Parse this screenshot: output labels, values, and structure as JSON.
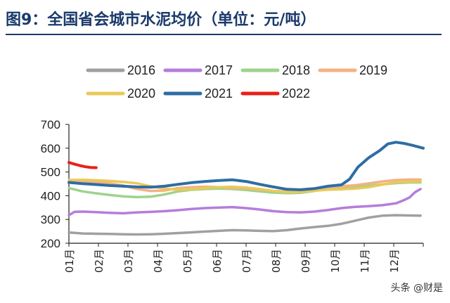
{
  "figure": {
    "title": "图9：全国省会城市水泥均价（单位：元/吨）",
    "watermark": "头条 @财是"
  },
  "chart_data": {
    "type": "line",
    "title": "全国省会城市水泥均价",
    "unit": "元/吨",
    "x_unit": "month",
    "categories": [
      "01月",
      "02月",
      "03月",
      "04月",
      "05月",
      "06月",
      "07月",
      "08月",
      "09月",
      "10月",
      "11月",
      "12月"
    ],
    "ylim": [
      200,
      700
    ],
    "yticks": [
      200,
      300,
      400,
      500,
      600,
      700
    ],
    "grid": false,
    "legend_position": "top",
    "series": [
      {
        "name": "2016",
        "color": "#a0a0a0",
        "points": [
          [
            0,
            245
          ],
          [
            0.3,
            243
          ],
          [
            0.5,
            241
          ],
          [
            1,
            240
          ],
          [
            1.5,
            239
          ],
          [
            2,
            238
          ],
          [
            2.5,
            237
          ],
          [
            3,
            238
          ],
          [
            3.5,
            240
          ],
          [
            4,
            243
          ],
          [
            4.5,
            246
          ],
          [
            5,
            249
          ],
          [
            5.5,
            252
          ],
          [
            6,
            255
          ],
          [
            6.5,
            254
          ],
          [
            7,
            252
          ],
          [
            7.5,
            251
          ],
          [
            8,
            255
          ],
          [
            8.5,
            262
          ],
          [
            9,
            268
          ],
          [
            9.5,
            273
          ],
          [
            10,
            282
          ],
          [
            10.5,
            295
          ],
          [
            11,
            308
          ],
          [
            11.5,
            316
          ],
          [
            12,
            318
          ],
          [
            12.5,
            317
          ],
          [
            12.9,
            316
          ]
        ]
      },
      {
        "name": "2017",
        "color": "#b57ddb",
        "points": [
          [
            0,
            318
          ],
          [
            0.2,
            332
          ],
          [
            0.5,
            333
          ],
          [
            1,
            331
          ],
          [
            1.5,
            328
          ],
          [
            2,
            326
          ],
          [
            2.5,
            330
          ],
          [
            3,
            332
          ],
          [
            3.5,
            335
          ],
          [
            4,
            339
          ],
          [
            4.5,
            344
          ],
          [
            5,
            348
          ],
          [
            5.5,
            350
          ],
          [
            6,
            352
          ],
          [
            6.5,
            348
          ],
          [
            7,
            342
          ],
          [
            7.5,
            335
          ],
          [
            8,
            331
          ],
          [
            8.5,
            330
          ],
          [
            9,
            333
          ],
          [
            9.5,
            340
          ],
          [
            10,
            348
          ],
          [
            10.5,
            353
          ],
          [
            11,
            356
          ],
          [
            11.5,
            360
          ],
          [
            12,
            368
          ],
          [
            12.3,
            382
          ],
          [
            12.5,
            393
          ],
          [
            12.7,
            415
          ],
          [
            12.9,
            428
          ]
        ]
      },
      {
        "name": "2018",
        "color": "#9ed38a",
        "points": [
          [
            0,
            432
          ],
          [
            0.3,
            424
          ],
          [
            0.5,
            418
          ],
          [
            1,
            410
          ],
          [
            1.5,
            403
          ],
          [
            2,
            397
          ],
          [
            2.5,
            394
          ],
          [
            3,
            396
          ],
          [
            3.5,
            405
          ],
          [
            4,
            418
          ],
          [
            4.5,
            425
          ],
          [
            5,
            428
          ],
          [
            5.5,
            430
          ],
          [
            6,
            428
          ],
          [
            6.5,
            424
          ],
          [
            7,
            418
          ],
          [
            7.5,
            413
          ],
          [
            8,
            411
          ],
          [
            8.5,
            412
          ],
          [
            9,
            420
          ],
          [
            9.5,
            428
          ],
          [
            10,
            432
          ],
          [
            10.5,
            436
          ],
          [
            11,
            442
          ],
          [
            11.5,
            448
          ],
          [
            12,
            453
          ],
          [
            12.5,
            456
          ],
          [
            12.9,
            456
          ]
        ]
      },
      {
        "name": "2019",
        "color": "#f4b183",
        "points": [
          [
            0,
            466
          ],
          [
            0.5,
            462
          ],
          [
            1,
            457
          ],
          [
            1.5,
            452
          ],
          [
            2,
            443
          ],
          [
            2.5,
            428
          ],
          [
            3,
            420
          ],
          [
            3.5,
            422
          ],
          [
            4,
            432
          ],
          [
            4.5,
            436
          ],
          [
            5,
            438
          ],
          [
            5.5,
            436
          ],
          [
            6,
            433
          ],
          [
            6.5,
            430
          ],
          [
            7,
            426
          ],
          [
            7.5,
            420
          ],
          [
            8,
            418
          ],
          [
            8.5,
            420
          ],
          [
            9,
            428
          ],
          [
            9.5,
            436
          ],
          [
            10,
            440
          ],
          [
            10.5,
            444
          ],
          [
            11,
            452
          ],
          [
            11.5,
            460
          ],
          [
            12,
            466
          ],
          [
            12.5,
            468
          ],
          [
            12.9,
            468
          ]
        ]
      },
      {
        "name": "2020",
        "color": "#e9c95a",
        "points": [
          [
            0,
            466
          ],
          [
            0.5,
            467
          ],
          [
            1,
            465
          ],
          [
            1.5,
            462
          ],
          [
            2,
            458
          ],
          [
            2.5,
            452
          ],
          [
            3,
            440
          ],
          [
            3.5,
            430
          ],
          [
            4,
            425
          ],
          [
            4.5,
            428
          ],
          [
            5,
            432
          ],
          [
            5.5,
            436
          ],
          [
            6,
            438
          ],
          [
            6.5,
            434
          ],
          [
            7,
            428
          ],
          [
            7.5,
            420
          ],
          [
            8,
            415
          ],
          [
            8.5,
            416
          ],
          [
            9,
            421
          ],
          [
            9.5,
            425
          ],
          [
            10,
            427
          ],
          [
            10.5,
            430
          ],
          [
            11,
            436
          ],
          [
            11.5,
            447
          ],
          [
            12,
            457
          ],
          [
            12.5,
            459
          ],
          [
            12.9,
            460
          ]
        ]
      },
      {
        "name": "2021",
        "color": "#2e6da4",
        "points": [
          [
            0,
            456
          ],
          [
            0.5,
            451
          ],
          [
            1,
            447
          ],
          [
            1.5,
            443
          ],
          [
            2,
            440
          ],
          [
            2.5,
            437
          ],
          [
            3,
            436
          ],
          [
            3.5,
            440
          ],
          [
            4,
            448
          ],
          [
            4.5,
            455
          ],
          [
            5,
            460
          ],
          [
            5.5,
            464
          ],
          [
            6,
            467
          ],
          [
            6.5,
            460
          ],
          [
            7,
            448
          ],
          [
            7.5,
            437
          ],
          [
            8,
            427
          ],
          [
            8.5,
            425
          ],
          [
            9,
            430
          ],
          [
            9.5,
            440
          ],
          [
            10,
            446
          ],
          [
            10.3,
            470
          ],
          [
            10.6,
            520
          ],
          [
            11,
            560
          ],
          [
            11.4,
            590
          ],
          [
            11.7,
            618
          ],
          [
            12,
            625
          ],
          [
            12.3,
            620
          ],
          [
            12.6,
            612
          ],
          [
            13,
            600
          ]
        ]
      },
      {
        "name": "2022",
        "color": "#e8201a",
        "points": [
          [
            0,
            540
          ],
          [
            0.2,
            533
          ],
          [
            0.4,
            527
          ],
          [
            0.6,
            522
          ],
          [
            0.8,
            519
          ],
          [
            1,
            518
          ]
        ]
      }
    ]
  }
}
